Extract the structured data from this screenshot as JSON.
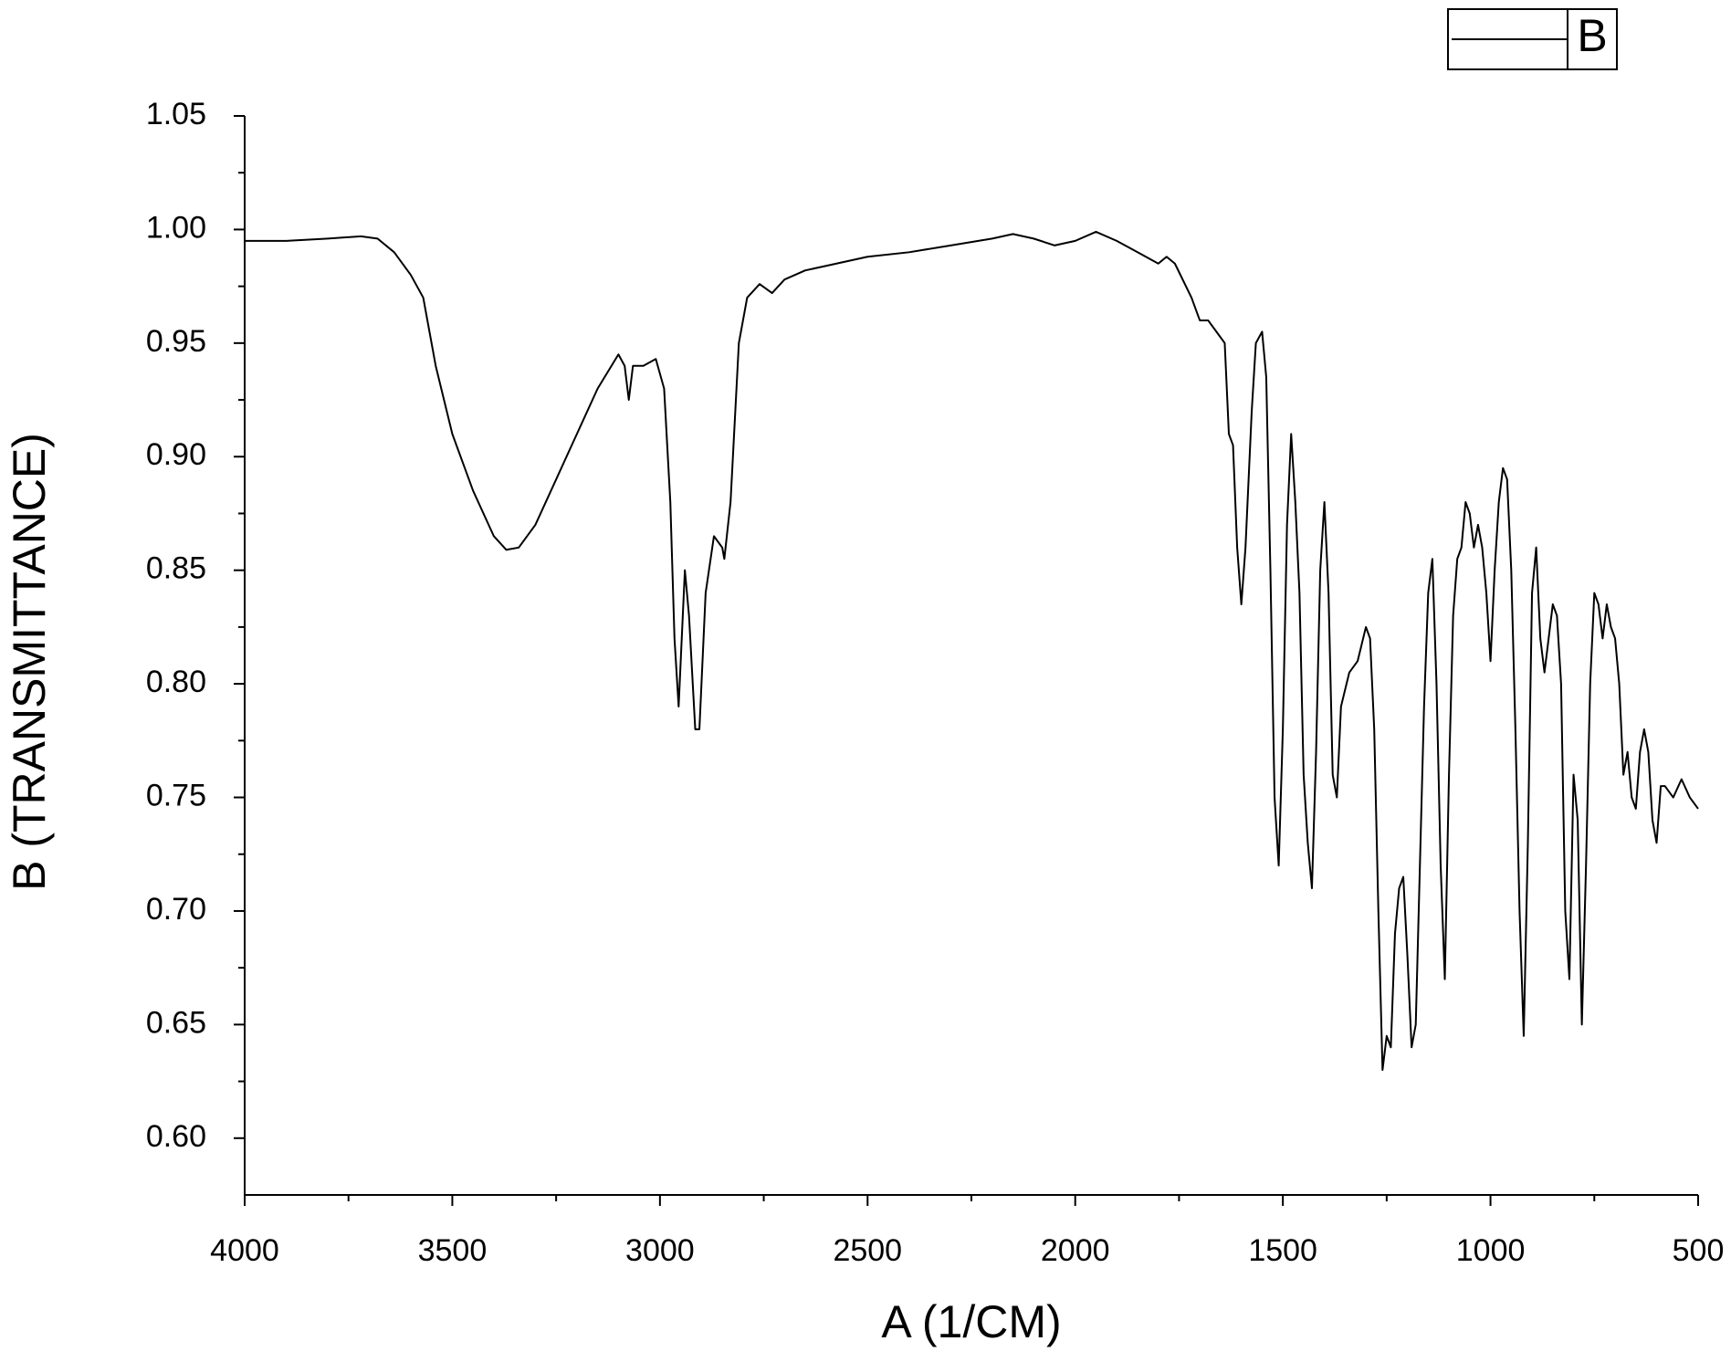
{
  "chart_data": {
    "type": "line",
    "xlabel": "A (1/CM)",
    "ylabel": "B (TRANSMITTANCE)",
    "xlim": [
      4000,
      500
    ],
    "ylim": [
      0.575,
      1.05
    ],
    "xticks": [
      4000,
      3500,
      3000,
      2500,
      2000,
      1500,
      1000,
      500
    ],
    "yticks": [
      {
        "value": 0.6,
        "label": "0.60"
      },
      0.65,
      {
        "value": 0.7,
        "label": "0.70"
      },
      0.75,
      {
        "value": 0.8,
        "label": "0.80"
      },
      0.85,
      {
        "value": 0.9,
        "label": "0.90"
      },
      0.95,
      {
        "value": 1.0,
        "label": "1.00"
      },
      1.05
    ],
    "legend": "upper right",
    "series": [
      {
        "name": "B",
        "color": "#000000",
        "x": [
          4000,
          3900,
          3800,
          3720,
          3680,
          3640,
          3600,
          3570,
          3540,
          3500,
          3450,
          3400,
          3370,
          3340,
          3300,
          3250,
          3200,
          3150,
          3100,
          3085,
          3075,
          3065,
          3040,
          3010,
          2990,
          2975,
          2965,
          2955,
          2950,
          2940,
          2930,
          2915,
          2905,
          2890,
          2870,
          2850,
          2845,
          2830,
          2810,
          2790,
          2760,
          2730,
          2700,
          2650,
          2600,
          2550,
          2500,
          2400,
          2300,
          2200,
          2150,
          2100,
          2050,
          2000,
          1950,
          1900,
          1850,
          1800,
          1780,
          1760,
          1720,
          1700,
          1680,
          1660,
          1640,
          1630,
          1620,
          1610,
          1600,
          1590,
          1575,
          1565,
          1550,
          1540,
          1530,
          1520,
          1510,
          1500,
          1490,
          1480,
          1470,
          1460,
          1450,
          1440,
          1430,
          1420,
          1410,
          1400,
          1390,
          1380,
          1370,
          1360,
          1340,
          1320,
          1300,
          1290,
          1280,
          1270,
          1260,
          1250,
          1240,
          1230,
          1220,
          1210,
          1200,
          1190,
          1180,
          1170,
          1160,
          1150,
          1140,
          1130,
          1120,
          1110,
          1100,
          1090,
          1080,
          1070,
          1060,
          1050,
          1040,
          1030,
          1020,
          1010,
          1000,
          990,
          980,
          970,
          960,
          950,
          940,
          930,
          920,
          910,
          900,
          890,
          880,
          870,
          860,
          850,
          840,
          830,
          820,
          810,
          800,
          790,
          780,
          770,
          760,
          750,
          740,
          730,
          720,
          710,
          700,
          690,
          680,
          670,
          660,
          650,
          640,
          630,
          620,
          610,
          600,
          590,
          580,
          560,
          540,
          520,
          500
        ],
        "values": [
          0.995,
          0.995,
          0.996,
          0.997,
          0.996,
          0.99,
          0.98,
          0.97,
          0.94,
          0.91,
          0.885,
          0.865,
          0.859,
          0.86,
          0.87,
          0.89,
          0.91,
          0.93,
          0.945,
          0.94,
          0.925,
          0.94,
          0.94,
          0.943,
          0.93,
          0.88,
          0.82,
          0.79,
          0.81,
          0.85,
          0.83,
          0.78,
          0.78,
          0.84,
          0.865,
          0.86,
          0.855,
          0.88,
          0.95,
          0.97,
          0.976,
          0.972,
          0.978,
          0.982,
          0.984,
          0.986,
          0.988,
          0.99,
          0.993,
          0.996,
          0.998,
          0.996,
          0.993,
          0.995,
          0.999,
          0.995,
          0.99,
          0.985,
          0.988,
          0.985,
          0.97,
          0.96,
          0.96,
          0.955,
          0.95,
          0.91,
          0.905,
          0.86,
          0.835,
          0.86,
          0.92,
          0.95,
          0.955,
          0.935,
          0.85,
          0.75,
          0.72,
          0.78,
          0.87,
          0.91,
          0.88,
          0.84,
          0.76,
          0.73,
          0.71,
          0.77,
          0.85,
          0.88,
          0.84,
          0.76,
          0.75,
          0.79,
          0.805,
          0.81,
          0.825,
          0.82,
          0.78,
          0.7,
          0.63,
          0.645,
          0.64,
          0.69,
          0.71,
          0.715,
          0.68,
          0.64,
          0.65,
          0.72,
          0.79,
          0.84,
          0.855,
          0.8,
          0.72,
          0.67,
          0.76,
          0.83,
          0.855,
          0.86,
          0.88,
          0.875,
          0.86,
          0.87,
          0.86,
          0.84,
          0.81,
          0.85,
          0.88,
          0.895,
          0.89,
          0.85,
          0.78,
          0.7,
          0.645,
          0.73,
          0.84,
          0.86,
          0.82,
          0.805,
          0.82,
          0.835,
          0.83,
          0.8,
          0.7,
          0.67,
          0.76,
          0.74,
          0.65,
          0.72,
          0.8,
          0.84,
          0.835,
          0.82,
          0.835,
          0.825,
          0.82,
          0.8,
          0.76,
          0.77,
          0.75,
          0.745,
          0.77,
          0.78,
          0.77,
          0.74,
          0.73,
          0.755,
          0.755,
          0.75,
          0.758,
          0.75,
          0.745
        ]
      }
    ]
  }
}
